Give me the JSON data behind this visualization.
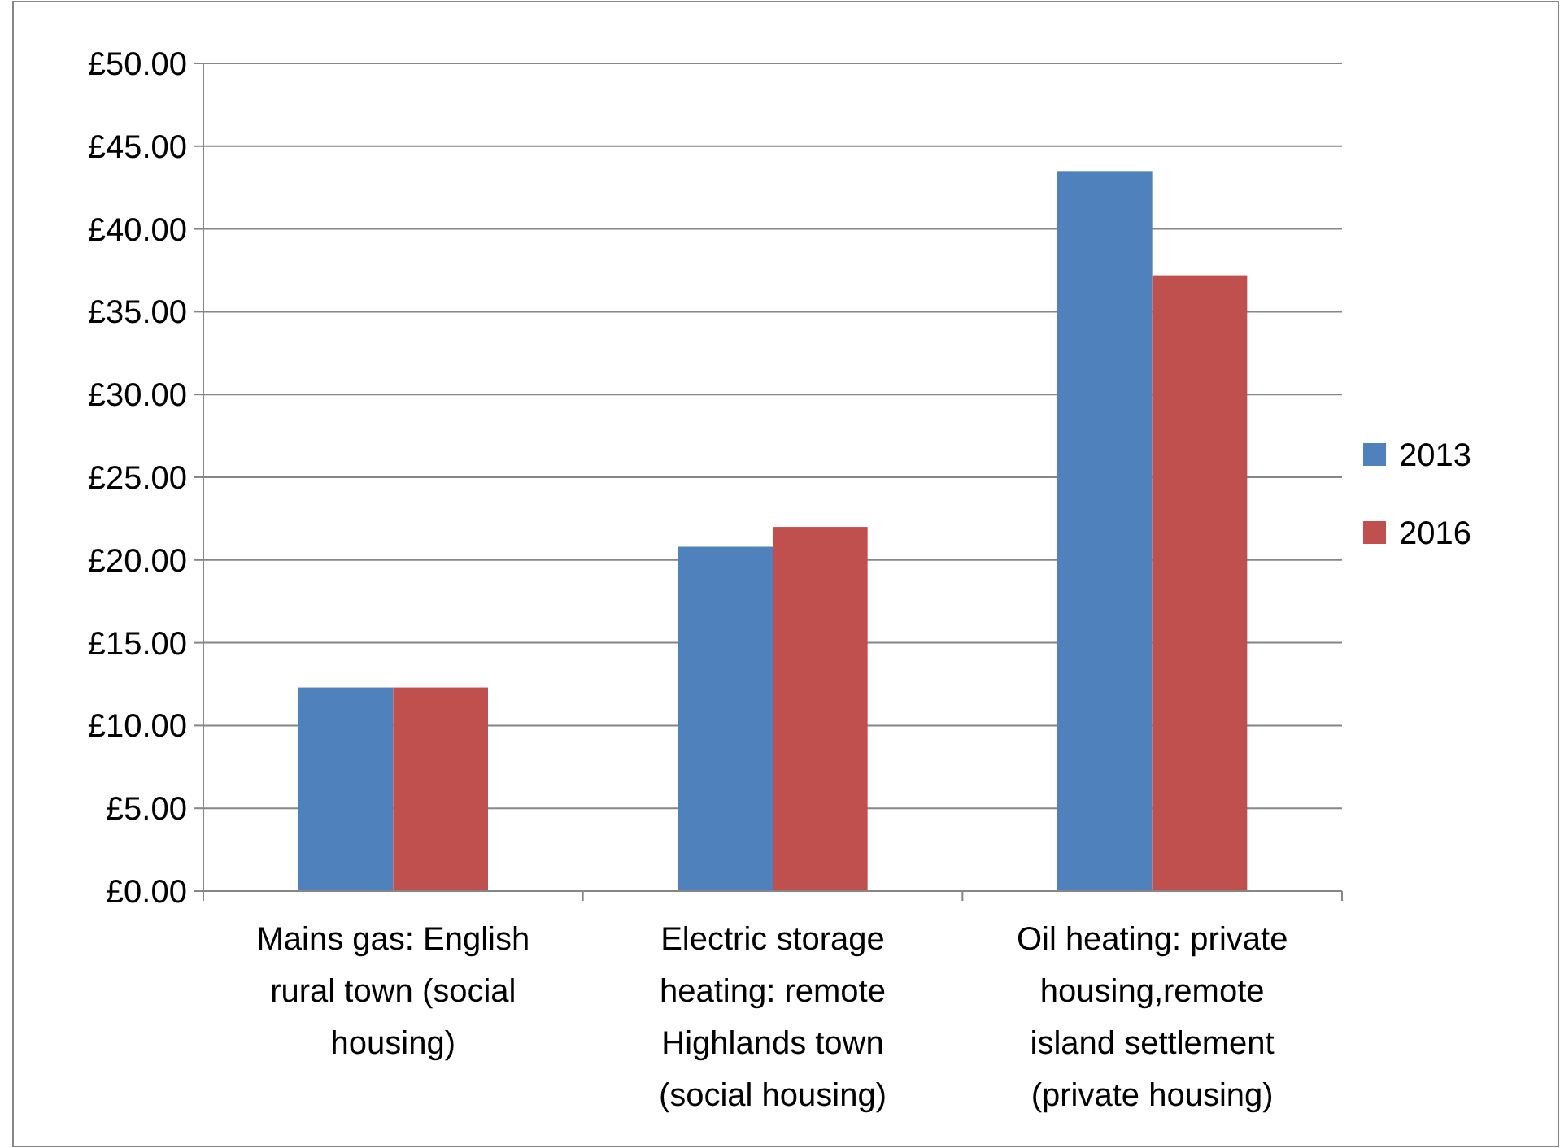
{
  "chart_data": {
    "type": "bar",
    "categories": [
      "Mains gas: English rural town (social housing)",
      "Electric storage heating: remote Highlands town (social housing)",
      "Oil heating: private housing,remote island settlement (private housing)"
    ],
    "series": [
      {
        "name": "2013",
        "color": "#4f81bd",
        "values": [
          12.3,
          20.8,
          43.5
        ]
      },
      {
        "name": "2016",
        "color": "#c0504d",
        "values": [
          12.3,
          22.0,
          37.2
        ]
      }
    ],
    "ylim": [
      0,
      50
    ],
    "yticks": [
      {
        "value": 0,
        "label": "£0.00"
      },
      {
        "value": 5,
        "label": "£5.00"
      },
      {
        "value": 10,
        "label": "£10.00"
      },
      {
        "value": 15,
        "label": "£15.00"
      },
      {
        "value": 20,
        "label": "£20.00"
      },
      {
        "value": 25,
        "label": "£25.00"
      },
      {
        "value": 30,
        "label": "£30.00"
      },
      {
        "value": 35,
        "label": "£35.00"
      },
      {
        "value": 40,
        "label": "£40.00"
      },
      {
        "value": 45,
        "label": "£45.00"
      },
      {
        "value": 50,
        "label": "£50.00"
      }
    ],
    "grid": "y",
    "legend": "right"
  }
}
